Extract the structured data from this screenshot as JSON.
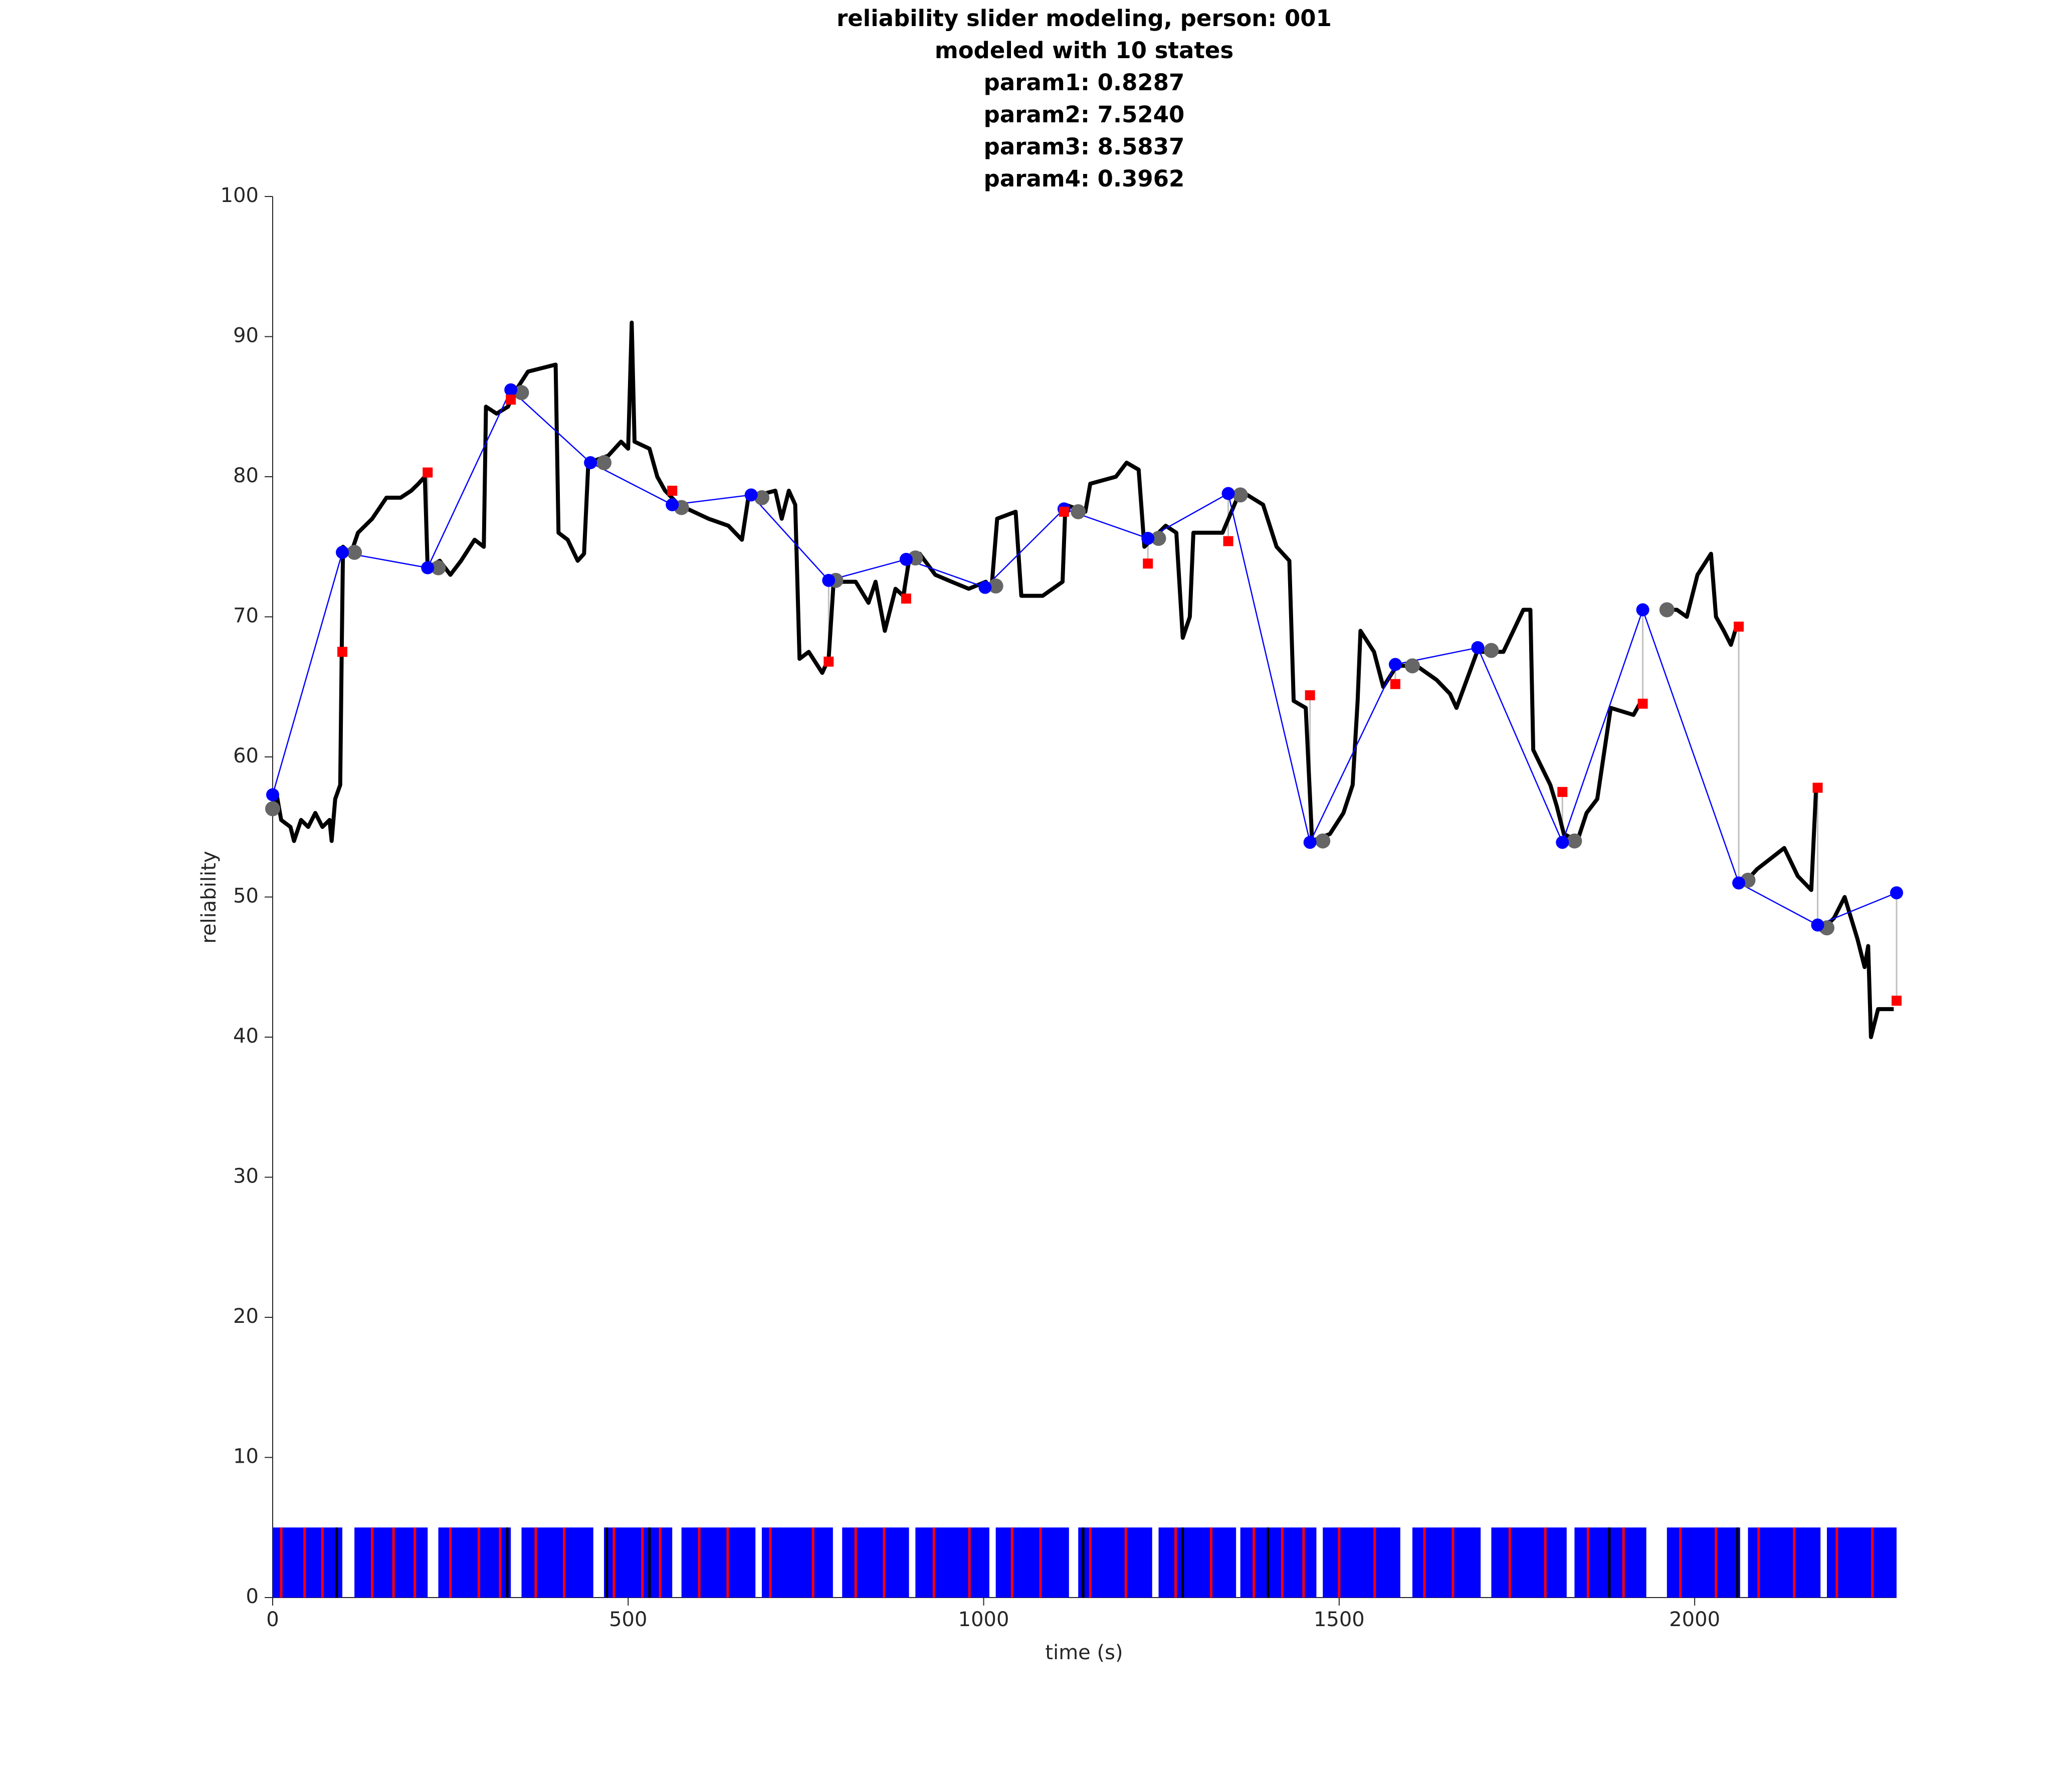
{
  "chart_data": {
    "type": "line",
    "title_lines": [
      "reliability slider modeling, person: 001",
      "modeled with 10 states",
      "param1: 0.8287",
      "param2: 7.5240",
      "param3: 8.5837",
      "param4: 0.3962"
    ],
    "xlabel": "time (s)",
    "ylabel": "reliability",
    "xlim": [
      0,
      2284
    ],
    "ylim": [
      0,
      100
    ],
    "xticks": [
      0,
      500,
      1000,
      1500,
      2000
    ],
    "yticks": [
      0,
      10,
      20,
      30,
      40,
      50,
      60,
      70,
      80,
      90,
      100
    ],
    "trace": {
      "color": "#000000",
      "x": [
        0,
        5,
        12,
        25,
        30,
        40,
        50,
        60,
        70,
        80,
        83,
        88,
        95,
        97,
        99,
        110,
        120,
        140,
        160,
        180,
        195,
        205,
        214,
        218,
        235,
        250,
        265,
        284,
        297,
        300,
        315,
        331,
        340,
        359,
        398,
        402,
        415,
        429,
        438,
        444,
        472,
        490,
        500,
        505,
        509,
        530,
        541,
        552,
        571,
        613,
        641,
        660,
        669,
        707,
        716,
        726,
        735,
        741,
        754,
        773,
        782,
        789,
        820,
        838,
        848,
        861,
        876,
        887,
        895,
        910,
        932,
        955,
        979,
        1003,
        1011,
        1019,
        1045,
        1053,
        1083,
        1111,
        1115,
        1143,
        1150,
        1186,
        1201,
        1218,
        1226,
        1256,
        1271,
        1280,
        1290,
        1295,
        1336,
        1361,
        1393,
        1412,
        1430,
        1436,
        1453,
        1462,
        1487,
        1506,
        1519,
        1526,
        1530,
        1549,
        1562,
        1581,
        1609,
        1637,
        1656,
        1665,
        1694,
        1731,
        1759,
        1769,
        1773,
        1797,
        1806,
        1816,
        1835,
        1848,
        1863,
        1882,
        1914,
        1925,
        1940,
        1957,
        1975,
        1989,
        2004,
        2023,
        2030,
        2041,
        2051,
        2060,
        2065,
        2070,
        2088,
        2126,
        2145,
        2164,
        2171,
        2174,
        2177,
        2196,
        2211,
        2229,
        2239,
        2244,
        2248,
        2258,
        2280
      ],
      "values": [
        56.5,
        57.5,
        55.5,
        55,
        54,
        55.5,
        55,
        56,
        55,
        55.5,
        54,
        57,
        58,
        67,
        75,
        74.5,
        76,
        77,
        78.5,
        78.5,
        79,
        79.5,
        80,
        73.5,
        74,
        73,
        74,
        75.5,
        75,
        85,
        84.5,
        85,
        86,
        87.5,
        88,
        76,
        75.5,
        74,
        74.5,
        81,
        81.5,
        82.5,
        82,
        91,
        82.5,
        82,
        80,
        79,
        78,
        77,
        76.5,
        75.5,
        78.5,
        79,
        77,
        79,
        78,
        67,
        67.5,
        66,
        67,
        72.5,
        72.5,
        71,
        72.5,
        69,
        72,
        71.5,
        74,
        74.5,
        73,
        72.5,
        72,
        72.5,
        72,
        77,
        77.5,
        71.5,
        71.5,
        72.5,
        78,
        77.5,
        79.5,
        80,
        81,
        80.5,
        75,
        76.5,
        76,
        68.5,
        70,
        76,
        76,
        79,
        78,
        75,
        74,
        64,
        63.5,
        54,
        54.5,
        56,
        58,
        64,
        69,
        67.5,
        65,
        66.5,
        66.5,
        65.5,
        64.5,
        63.5,
        67.5,
        67.5,
        70.5,
        70.5,
        60.5,
        58,
        56.5,
        54.5,
        54,
        56,
        57,
        63.5,
        63,
        64,
        null,
        70.5,
        70.5,
        70,
        73,
        74.5,
        70,
        69,
        68,
        69.5,
        null,
        51,
        52,
        53.5,
        51.5,
        50.5,
        58,
        null,
        47.5,
        48.5,
        50,
        47,
        45,
        46.5,
        40,
        42,
        42
      ]
    },
    "model": {
      "color": "#0000ff",
      "x": [
        0,
        98,
        218,
        335,
        447,
        562,
        673,
        782,
        891,
        1002,
        1113,
        1231,
        1344,
        1459,
        1579,
        1695,
        1814,
        1927,
        2062,
        2173,
        2284
      ],
      "values": [
        57.3,
        74.6,
        73.5,
        86.2,
        81,
        78,
        78.7,
        72.6,
        74.1,
        72.1,
        77.7,
        75.6,
        78.8,
        53.9,
        66.6,
        67.8,
        53.9,
        70.5,
        51,
        48,
        50.3
      ]
    },
    "observed": {
      "color": "#ff0000",
      "values": [
        null,
        67.5,
        80.3,
        85.5,
        null,
        79,
        null,
        66.8,
        71.3,
        null,
        77.5,
        73.8,
        75.4,
        64.4,
        65.2,
        null,
        57.5,
        63.8,
        69.3,
        57.8,
        42.6
      ]
    },
    "samples": {
      "color": "#666666",
      "x": [
        0,
        115,
        233,
        350,
        466,
        575,
        688,
        792,
        904,
        1017,
        1133,
        1246,
        1361,
        1477,
        1603,
        1714,
        1831,
        1961,
        2075,
        2186
      ],
      "values": [
        56.3,
        74.6,
        73.5,
        86,
        81,
        77.8,
        78.5,
        72.6,
        74.2,
        72.2,
        77.5,
        75.6,
        78.7,
        54,
        66.5,
        67.6,
        54,
        70.5,
        51.2,
        47.8
      ]
    },
    "strip": {
      "height": 5,
      "color": "#0000ff",
      "blocks": [
        [
          0,
          98
        ],
        [
          115,
          218
        ],
        [
          233,
          335
        ],
        [
          350,
          451
        ],
        [
          466,
          562
        ],
        [
          575,
          679
        ],
        [
          688,
          788
        ],
        [
          801,
          895
        ],
        [
          904,
          1008
        ],
        [
          1017,
          1120
        ],
        [
          1133,
          1237
        ],
        [
          1246,
          1355
        ],
        [
          1361,
          1468
        ],
        [
          1477,
          1586
        ],
        [
          1603,
          1699
        ],
        [
          1714,
          1820
        ],
        [
          1831,
          1932
        ],
        [
          1961,
          2064
        ],
        [
          2075,
          2177
        ],
        [
          2186,
          2284
        ]
      ],
      "red_events": {
        "color": "#ff0000",
        "x": [
          12,
          45,
          70,
          140,
          170,
          200,
          250,
          290,
          320,
          370,
          410,
          480,
          520,
          545,
          600,
          640,
          700,
          760,
          820,
          860,
          930,
          980,
          1040,
          1080,
          1150,
          1200,
          1270,
          1320,
          1380,
          1420,
          1450,
          1500,
          1550,
          1620,
          1660,
          1740,
          1790,
          1850,
          1900,
          1980,
          2030,
          2090,
          2140,
          2200,
          2250
        ]
      },
      "black_events": {
        "color": "#000000",
        "x": [
          90,
          330,
          470,
          530,
          1140,
          1280,
          1400,
          1880,
          2060
        ]
      }
    }
  }
}
